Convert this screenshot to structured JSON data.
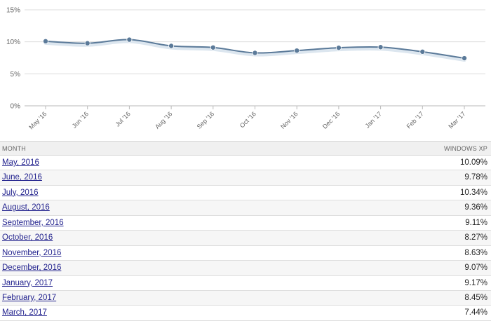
{
  "chart_data": {
    "type": "line",
    "categories": [
      "May '16",
      "Jun '16",
      "Jul '16",
      "Aug '16",
      "Sep '16",
      "Oct '16",
      "Nov '16",
      "Dec '16",
      "Jan '17",
      "Feb '17",
      "Mar '17"
    ],
    "series": [
      {
        "name": "Windows XP",
        "values": [
          10.09,
          9.78,
          10.34,
          9.36,
          9.11,
          8.27,
          8.63,
          9.07,
          9.17,
          8.45,
          7.44
        ]
      }
    ],
    "yticks": [
      "15%",
      "10%",
      "5%",
      "0%"
    ],
    "ylim": [
      0,
      15
    ],
    "grid": true,
    "line_color": "#5b7a99",
    "fill_color": "#dce6ef"
  },
  "table": {
    "header_month": "MONTH",
    "header_value": "WINDOWS XP",
    "rows": [
      {
        "month": "May, 2016",
        "value": "10.09%"
      },
      {
        "month": "June, 2016",
        "value": "9.78%"
      },
      {
        "month": "July, 2016",
        "value": "10.34%"
      },
      {
        "month": "August, 2016",
        "value": "9.36%"
      },
      {
        "month": "September, 2016",
        "value": "9.11%"
      },
      {
        "month": "October, 2016",
        "value": "8.27%"
      },
      {
        "month": "November, 2016",
        "value": "8.63%"
      },
      {
        "month": "December, 2016",
        "value": "9.07%"
      },
      {
        "month": "January, 2017",
        "value": "9.17%"
      },
      {
        "month": "February, 2017",
        "value": "8.45%"
      },
      {
        "month": "March, 2017",
        "value": "7.44%"
      }
    ]
  }
}
